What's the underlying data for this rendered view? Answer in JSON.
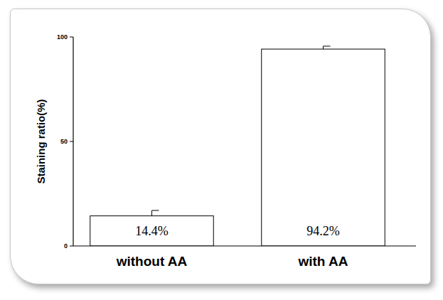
{
  "chart_data": {
    "type": "bar",
    "categories": [
      "without AA",
      "with AA"
    ],
    "values": [
      14.4,
      94.2
    ],
    "value_labels": [
      "14.4%",
      "94.2%"
    ],
    "errors": [
      2.6,
      1.4
    ],
    "data_labels": true,
    "color": "#ffffff",
    "y_label": "Staining ratio(%)",
    "ylim": [
      0,
      100
    ],
    "yticks": [
      0,
      50,
      100
    ],
    "grid": false
  }
}
